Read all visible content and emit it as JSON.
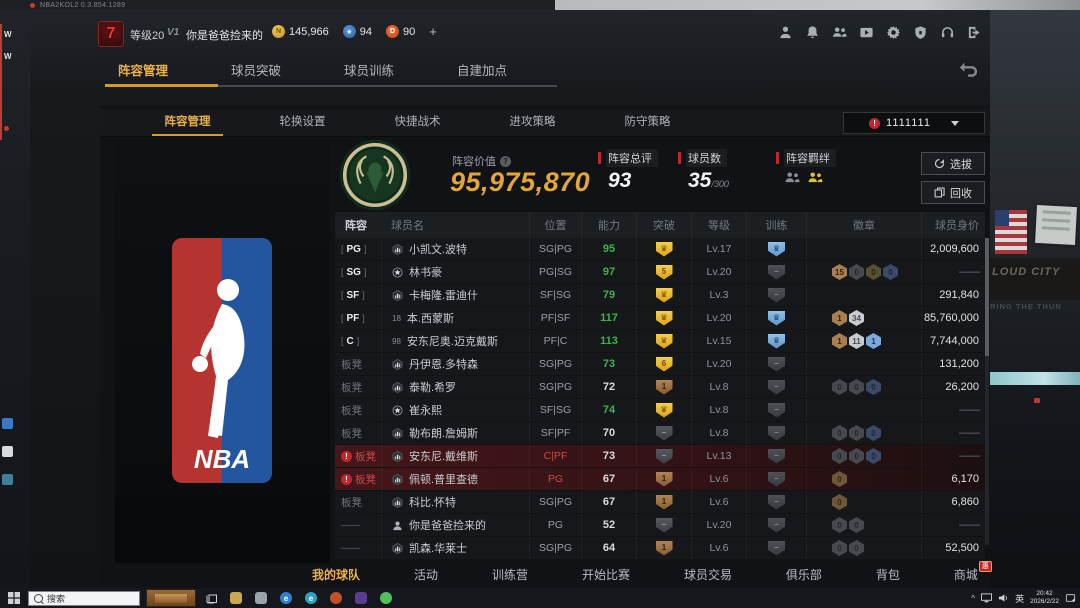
{
  "window": {
    "title": "NBA2KOL2 0.3.854.1289"
  },
  "desktop": {
    "arena_sign": "LOUD CITY",
    "arena_sub": "RING THE THUN"
  },
  "colors": {
    "accent_yellow": "#e9b04c",
    "alert_red": "#c0272d",
    "ability_green": "#3cb549",
    "value_gold": "#e2a63b"
  },
  "header": {
    "level_badge": "7",
    "level": "等级20",
    "vip": "V1",
    "player_name": "你是爸爸捡来的",
    "currencies": [
      {
        "icon": "coin-n-icon",
        "value": "145,966"
      },
      {
        "icon": "star-coin-icon",
        "value": "94"
      },
      {
        "icon": "coin-d-icon",
        "value": "90"
      }
    ],
    "add_label": "+",
    "icons": [
      "user",
      "bell",
      "friends",
      "video",
      "settings",
      "shield",
      "headset",
      "exit"
    ]
  },
  "main_tabs": [
    {
      "label": "阵容管理",
      "active": true
    },
    {
      "label": "球员突破",
      "active": false
    },
    {
      "label": "球员训练",
      "active": false
    },
    {
      "label": "自建加点",
      "active": false
    }
  ],
  "sub_tabs": [
    {
      "label": "阵容管理",
      "active": true
    },
    {
      "label": "轮换设置",
      "active": false
    },
    {
      "label": "快捷战术",
      "active": false
    },
    {
      "label": "进攻策略",
      "active": false
    },
    {
      "label": "防守策略",
      "active": false
    }
  ],
  "lineup_select": {
    "alert": "!",
    "value": "1111111"
  },
  "summary": {
    "team_value_label": "阵容价值",
    "team_value": "95,975,870",
    "overall_label": "阵容总评",
    "overall_value": "93",
    "players_label": "球员数",
    "players_value": "35",
    "players_max": "/300",
    "bonds_label": "阵容羁绊",
    "buttons": [
      {
        "label": "选拔",
        "icon": "cycle-icon"
      },
      {
        "label": "回收",
        "icon": "copy-icon"
      }
    ]
  },
  "table": {
    "headers": [
      "阵容",
      "球员名",
      "位置",
      "能力",
      "突破",
      "等级",
      "训练",
      "徽章",
      "球员身价"
    ],
    "rows": [
      {
        "slot": "PG",
        "slot_style": "starter",
        "alert": false,
        "name": "小凯文.波特",
        "name_icon": "stats",
        "positions": "SG|PG",
        "ability": "95",
        "ability_green": true,
        "bt": {
          "tier": "gold",
          "glyph": "crown"
        },
        "level": "Lv.17",
        "training": "blue",
        "badges": [],
        "value": "2,009,600",
        "row_style": "normal"
      },
      {
        "slot": "SG",
        "slot_style": "starter",
        "alert": false,
        "name": "林书豪",
        "name_icon": "star",
        "positions": "PG|SG",
        "ability": "97",
        "ability_green": true,
        "bt": {
          "tier": "gold",
          "glyph": "5"
        },
        "level": "Lv.20",
        "training": "gray",
        "badges": [
          {
            "n": "15",
            "tier": "bronze"
          },
          {
            "n": "0",
            "tier": "dark"
          },
          {
            "n": "0",
            "tier": "olive"
          },
          {
            "n": "0",
            "tier": "navy"
          }
        ],
        "value": "——",
        "row_style": "normal"
      },
      {
        "slot": "SF",
        "slot_style": "starter",
        "alert": false,
        "name": "卡梅隆.雷迪什",
        "name_icon": "stats",
        "positions": "SF|SG",
        "ability": "79",
        "ability_green": true,
        "bt": {
          "tier": "gold",
          "glyph": "crown"
        },
        "level": "Lv.3",
        "training": "gray",
        "badges": [],
        "value": "291,840",
        "row_style": "normal"
      },
      {
        "slot": "PF",
        "slot_style": "starter",
        "alert": false,
        "name": "本.西蒙斯",
        "name_icon": "18",
        "positions": "PF|SF",
        "ability": "117",
        "ability_green": true,
        "bt": {
          "tier": "gold",
          "glyph": "crown"
        },
        "level": "Lv.20",
        "training": "blue",
        "badges": [
          {
            "n": "1",
            "tier": "bronze"
          },
          {
            "n": "34",
            "tier": "silver"
          }
        ],
        "value": "85,760,000",
        "row_style": "normal"
      },
      {
        "slot": "C",
        "slot_style": "starter",
        "alert": false,
        "name": "安东尼奥.迈克戴斯",
        "name_icon": "98",
        "positions": "PF|C",
        "ability": "113",
        "ability_green": true,
        "bt": {
          "tier": "gold",
          "glyph": "crown"
        },
        "level": "Lv.15",
        "training": "blue",
        "badges": [
          {
            "n": "1",
            "tier": "bronze"
          },
          {
            "n": "11",
            "tier": "silver"
          },
          {
            "n": "1",
            "tier": "blue"
          }
        ],
        "value": "7,744,000",
        "row_style": "normal"
      },
      {
        "slot": "板凳",
        "slot_style": "bench",
        "alert": false,
        "name": "丹伊恩.多特森",
        "name_icon": "stats",
        "positions": "SG|PG",
        "ability": "73",
        "ability_green": true,
        "bt": {
          "tier": "gold",
          "glyph": "6"
        },
        "level": "Lv.20",
        "training": "gray",
        "badges": [],
        "value": "131,200",
        "row_style": "normal"
      },
      {
        "slot": "板凳",
        "slot_style": "bench",
        "alert": false,
        "name": "泰勒.希罗",
        "name_icon": "stats",
        "positions": "SG|PG",
        "ability": "72",
        "ability_green": false,
        "bt": {
          "tier": "bronze",
          "glyph": "1"
        },
        "level": "Lv.8",
        "training": "gray",
        "badges": [
          {
            "n": "0",
            "tier": "dark"
          },
          {
            "n": "0",
            "tier": "dark"
          },
          {
            "n": "0",
            "tier": "navy"
          }
        ],
        "value": "26,200",
        "row_style": "normal"
      },
      {
        "slot": "板凳",
        "slot_style": "bench",
        "alert": false,
        "name": "崔永熙",
        "name_icon": "star",
        "positions": "SF|SG",
        "ability": "74",
        "ability_green": true,
        "bt": {
          "tier": "gold",
          "glyph": "crown"
        },
        "level": "Lv.8",
        "training": "gray",
        "badges": [],
        "value": "——",
        "row_style": "normal"
      },
      {
        "slot": "板凳",
        "slot_style": "bench",
        "alert": false,
        "name": "勒布朗.詹姆斯",
        "name_icon": "stats",
        "positions": "SF|PF",
        "ability": "70",
        "ability_green": false,
        "bt": {
          "tier": "gray",
          "glyph": "minus"
        },
        "level": "Lv.8",
        "training": "gray",
        "badges": [
          {
            "n": "0",
            "tier": "dark"
          },
          {
            "n": "0",
            "tier": "dark"
          },
          {
            "n": "0",
            "tier": "navy"
          }
        ],
        "value": "——",
        "row_style": "normal"
      },
      {
        "slot": "板凳",
        "slot_style": "bench",
        "alert": true,
        "name": "安东尼.戴维斯",
        "name_icon": "stats",
        "positions": "C|PF",
        "ability": "73",
        "ability_green": false,
        "bt": {
          "tier": "gray",
          "glyph": "minus"
        },
        "level": "Lv.13",
        "training": "gray",
        "badges": [
          {
            "n": "0",
            "tier": "dark"
          },
          {
            "n": "0",
            "tier": "dark"
          },
          {
            "n": "0",
            "tier": "navy"
          }
        ],
        "value": "——",
        "row_style": "red"
      },
      {
        "slot": "板凳",
        "slot_style": "bench",
        "alert": true,
        "name": "佩顿.普里查德",
        "name_icon": "stats",
        "positions": "PG",
        "ability": "67",
        "ability_green": false,
        "bt": {
          "tier": "bronze",
          "glyph": "1"
        },
        "level": "Lv.6",
        "training": "gray",
        "badges": [
          {
            "n": "0",
            "tier": "darkbronze"
          }
        ],
        "value": "6,170",
        "row_style": "red"
      },
      {
        "slot": "板凳",
        "slot_style": "bench",
        "alert": false,
        "name": "科比.怀特",
        "name_icon": "stats",
        "positions": "SG|PG",
        "ability": "67",
        "ability_green": false,
        "bt": {
          "tier": "bronze",
          "glyph": "1"
        },
        "level": "Lv.6",
        "training": "gray",
        "badges": [
          {
            "n": "0",
            "tier": "darkbronze"
          }
        ],
        "value": "6,860",
        "row_style": "normal"
      },
      {
        "slot": "——",
        "slot_style": "none",
        "alert": false,
        "name": "你是爸爸捡来的",
        "name_icon": "person",
        "positions": "PG",
        "ability": "52",
        "ability_green": false,
        "bt": {
          "tier": "gray",
          "glyph": "minus"
        },
        "level": "Lv.20",
        "training": "gray",
        "badges": [
          {
            "n": "0",
            "tier": "dark"
          },
          {
            "n": "0",
            "tier": "dark"
          }
        ],
        "value": "——",
        "row_style": "normal"
      },
      {
        "slot": "——",
        "slot_style": "none",
        "alert": false,
        "name": "凯森.华莱士",
        "name_icon": "stats",
        "positions": "SG|PG",
        "ability": "64",
        "ability_green": false,
        "bt": {
          "tier": "bronze",
          "glyph": "1"
        },
        "level": "Lv.6",
        "training": "gray",
        "badges": [
          {
            "n": "0",
            "tier": "dark"
          },
          {
            "n": "0",
            "tier": "dark"
          }
        ],
        "value": "52,500",
        "row_style": "normal"
      }
    ]
  },
  "bottom_nav": [
    {
      "label": "我的球队",
      "active": true,
      "badge": ""
    },
    {
      "label": "活动",
      "active": false,
      "badge": ""
    },
    {
      "label": "训练营",
      "active": false,
      "badge": ""
    },
    {
      "label": "开始比赛",
      "active": false,
      "badge": ""
    },
    {
      "label": "球员交易",
      "active": false,
      "badge": ""
    },
    {
      "label": "俱乐部",
      "active": false,
      "badge": ""
    },
    {
      "label": "背包",
      "active": false,
      "badge": ""
    },
    {
      "label": "商城",
      "active": false,
      "badge": "惠"
    }
  ],
  "taskbar": {
    "search_placeholder": "搜索",
    "apps": [
      {
        "name": "folder",
        "color": "#caa94e",
        "round": false
      },
      {
        "name": "store",
        "color": "#9aa2aa",
        "round": false
      },
      {
        "name": "edge",
        "color": "#2f7fd4",
        "round": true,
        "letter": "e"
      },
      {
        "name": "browser",
        "color": "#2aa3c8",
        "round": true,
        "letter": "e"
      },
      {
        "name": "game-launcher",
        "color": "#c2502a",
        "round": true
      },
      {
        "name": "app-2k",
        "color": "#5b3d8f",
        "round": false
      },
      {
        "name": "wechat",
        "color": "#4fc15c",
        "round": true
      }
    ],
    "lang": "英",
    "time": "20:42",
    "date": "2026/2/22"
  }
}
